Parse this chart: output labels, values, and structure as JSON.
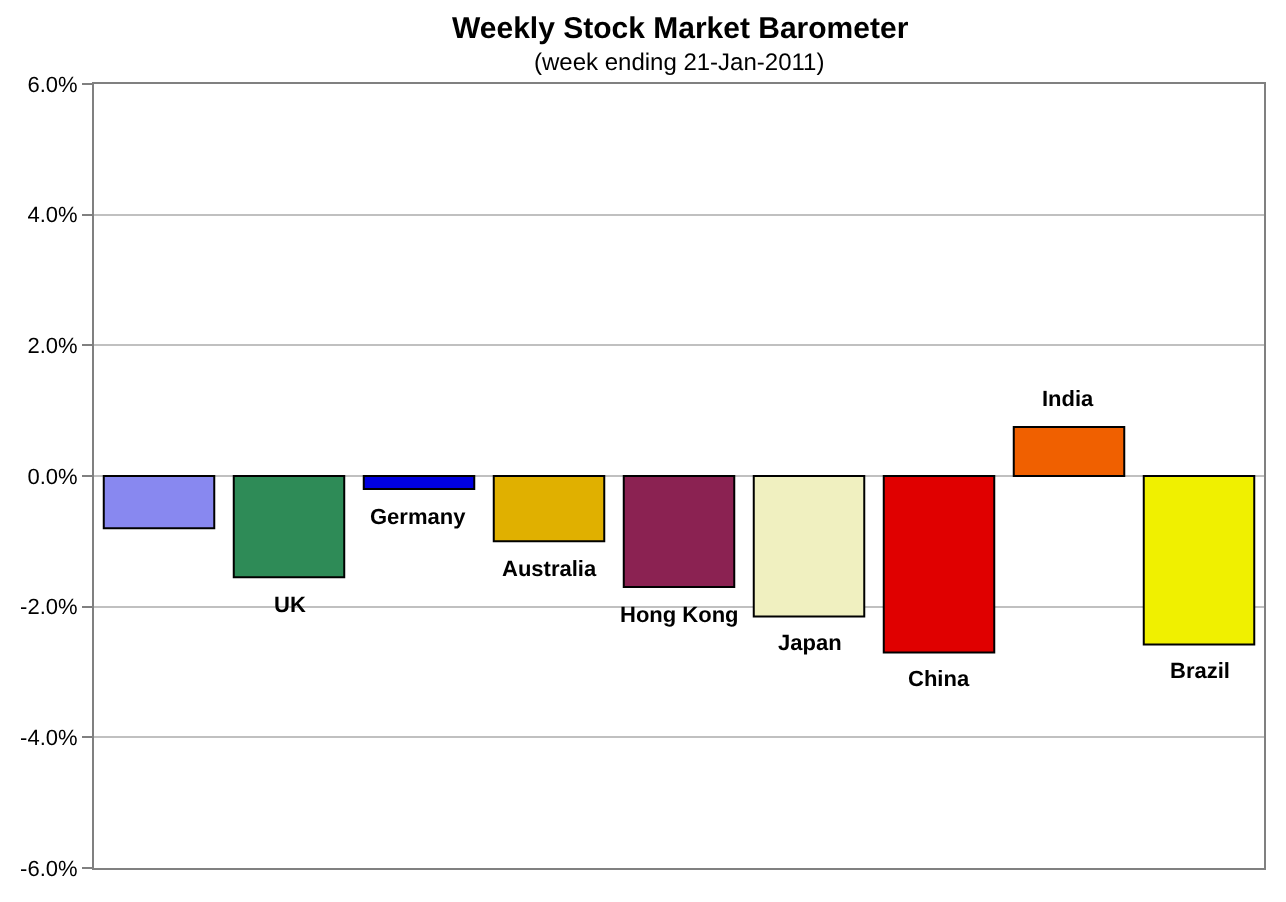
{
  "chart_data": {
    "type": "bar",
    "title": "Weekly Stock Market Barometer",
    "subtitle": "(week ending 21-Jan-2011)",
    "categories": [
      null,
      "UK",
      "Germany",
      "Australia",
      "Hong Kong",
      "Japan",
      "China",
      "India",
      "Brazil"
    ],
    "values": [
      -0.8,
      -1.55,
      -0.2,
      -1.0,
      -1.7,
      -2.15,
      -2.7,
      0.75,
      -2.58
    ],
    "colors": [
      "#8888f0",
      "#2e8b57",
      "#0000e0",
      "#e0b000",
      "#8b2252",
      "#f0f0c0",
      "#e00000",
      "#f06000",
      "#f0f000"
    ],
    "ylim": [
      -6,
      6
    ],
    "yticks": [
      {
        "value": -6,
        "label": "-6.0%"
      },
      {
        "value": -4,
        "label": "-4.0%"
      },
      {
        "value": -2,
        "label": "-2.0%"
      },
      {
        "value": 0,
        "label": "0.0%"
      },
      {
        "value": 2,
        "label": "2.0%"
      },
      {
        "value": 4,
        "label": "4.0%"
      },
      {
        "value": 6,
        "label": "6.0%"
      }
    ],
    "grid": "y",
    "tick_labels": "y"
  }
}
